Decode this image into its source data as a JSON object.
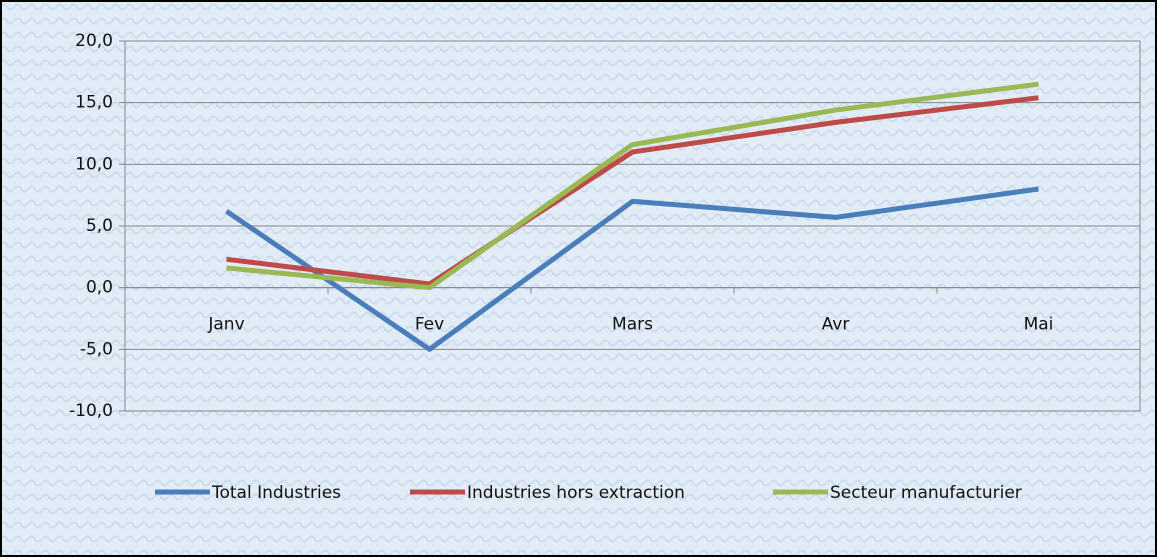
{
  "chart_data": {
    "type": "line",
    "categories": [
      "Janv",
      "Fev",
      "Mars",
      "Avr",
      "Mai"
    ],
    "series": [
      {
        "name": "Total Industries",
        "color": "#4a7ebb",
        "values": [
          6.2,
          -5.0,
          7.0,
          5.7,
          8.0
        ]
      },
      {
        "name": "Industries hors extraction",
        "color": "#be4b48",
        "values": [
          2.3,
          0.3,
          11.0,
          13.4,
          15.4
        ]
      },
      {
        "name": "Secteur manufacturier",
        "color": "#98b954",
        "values": [
          1.6,
          0.0,
          11.6,
          14.4,
          16.5
        ]
      }
    ],
    "ylim": [
      -10,
      20
    ],
    "yticks": [
      {
        "value": -10,
        "label": "-10,0"
      },
      {
        "value": -5,
        "label": "-5,0"
      },
      {
        "value": 0,
        "label": "0,0"
      },
      {
        "value": 5,
        "label": "5,0"
      },
      {
        "value": 10,
        "label": "10,0"
      },
      {
        "value": 15,
        "label": "15,0"
      },
      {
        "value": 20,
        "label": "20,0"
      }
    ],
    "grid": true,
    "legend": "bottom"
  }
}
